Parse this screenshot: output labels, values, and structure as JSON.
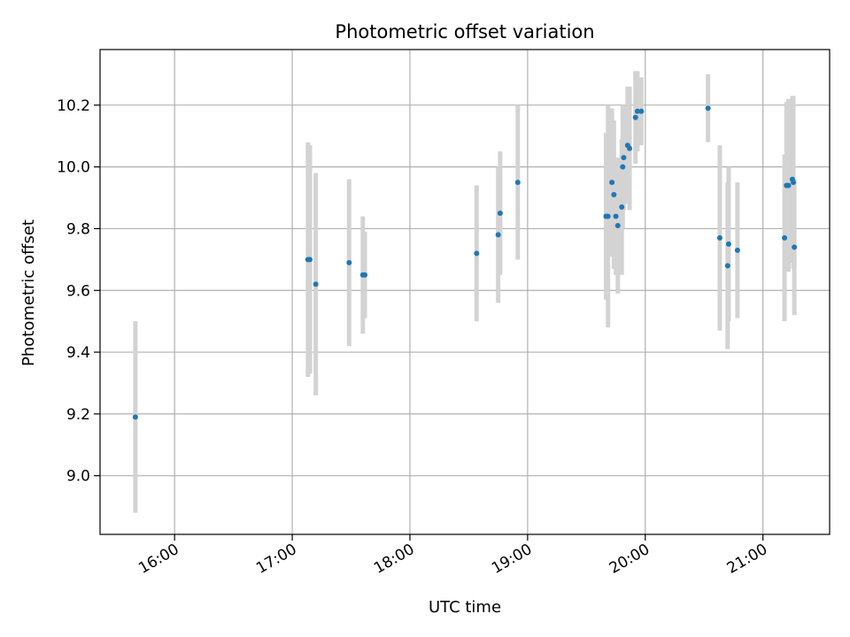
{
  "chart_data": {
    "type": "scatter",
    "title": "Photometric offset variation",
    "xlabel": "UTC time",
    "ylabel": "Photometric offset",
    "x_ticks": [
      "16:00",
      "17:00",
      "18:00",
      "19:00",
      "20:00",
      "21:00"
    ],
    "y_ticks": [
      "9.0",
      "9.2",
      "9.4",
      "9.6",
      "9.8",
      "10.0",
      "10.2"
    ],
    "xlim": [
      "15:22",
      "21:34"
    ],
    "ylim": [
      8.81,
      10.38
    ],
    "grid": true,
    "error_bars": true,
    "colors": {
      "point": "#1f77b4",
      "error_bar": "#d3d3d3",
      "grid": "#b0b0b0"
    },
    "points": [
      {
        "t": "15:40",
        "y": 9.19,
        "err": 0.31
      },
      {
        "t": "17:08",
        "y": 9.7,
        "err": 0.38
      },
      {
        "t": "17:09",
        "y": 9.7,
        "err": 0.37
      },
      {
        "t": "17:12",
        "y": 9.62,
        "err": 0.36
      },
      {
        "t": "17:29",
        "y": 9.69,
        "err": 0.27
      },
      {
        "t": "17:36",
        "y": 9.65,
        "err": 0.19
      },
      {
        "t": "17:37",
        "y": 9.65,
        "err": 0.14
      },
      {
        "t": "18:34",
        "y": 9.72,
        "err": 0.22
      },
      {
        "t": "18:45",
        "y": 9.78,
        "err": 0.22
      },
      {
        "t": "18:46",
        "y": 9.85,
        "err": 0.2
      },
      {
        "t": "18:55",
        "y": 9.95,
        "err": 0.25
      },
      {
        "t": "19:40",
        "y": 9.84,
        "err": 0.27
      },
      {
        "t": "19:41",
        "y": 9.84,
        "err": 0.36
      },
      {
        "t": "19:43",
        "y": 9.95,
        "err": 0.24
      },
      {
        "t": "19:44",
        "y": 9.91,
        "err": 0.24
      },
      {
        "t": "19:45",
        "y": 9.84,
        "err": 0.19
      },
      {
        "t": "19:46",
        "y": 9.81,
        "err": 0.22
      },
      {
        "t": "19:48",
        "y": 9.87,
        "err": 0.22
      },
      {
        "t": "19:48.5",
        "y": 10.0,
        "err": 0.2
      },
      {
        "t": "19:49",
        "y": 10.03,
        "err": 0.17
      },
      {
        "t": "19:51",
        "y": 10.07,
        "err": 0.19
      },
      {
        "t": "19:52",
        "y": 10.06,
        "err": 0.2
      },
      {
        "t": "19:55",
        "y": 10.16,
        "err": 0.15
      },
      {
        "t": "19:56",
        "y": 10.18,
        "err": 0.13
      },
      {
        "t": "19:58",
        "y": 10.18,
        "err": 0.11
      },
      {
        "t": "20:32",
        "y": 10.19,
        "err": 0.11
      },
      {
        "t": "20:38",
        "y": 9.77,
        "err": 0.3
      },
      {
        "t": "20:42",
        "y": 9.68,
        "err": 0.27
      },
      {
        "t": "20:42.5",
        "y": 9.75,
        "err": 0.25
      },
      {
        "t": "20:47",
        "y": 9.73,
        "err": 0.22
      },
      {
        "t": "21:11",
        "y": 9.77,
        "err": 0.27
      },
      {
        "t": "21:12",
        "y": 9.94,
        "err": 0.27
      },
      {
        "t": "21:13",
        "y": 9.94,
        "err": 0.28
      },
      {
        "t": "21:15",
        "y": 9.96,
        "err": 0.27
      },
      {
        "t": "21:15.5",
        "y": 9.95,
        "err": 0.28
      },
      {
        "t": "21:16",
        "y": 9.74,
        "err": 0.22
      }
    ]
  }
}
